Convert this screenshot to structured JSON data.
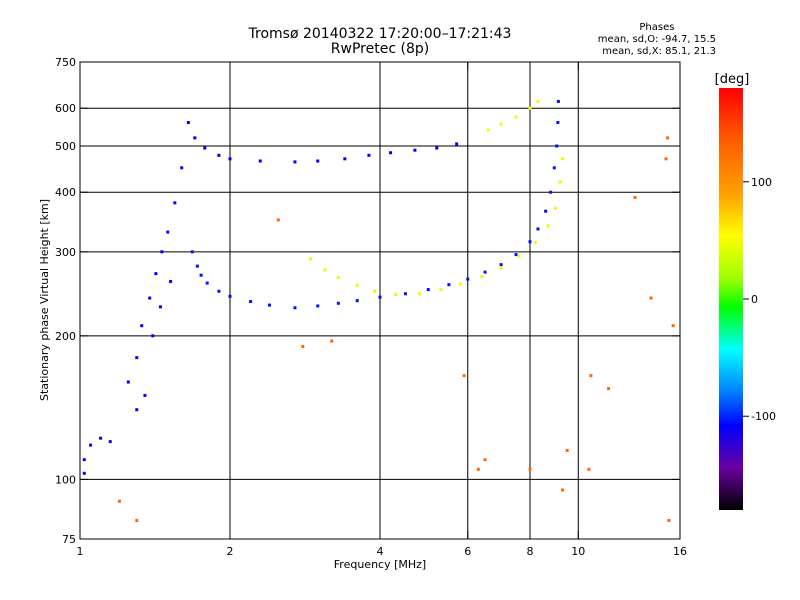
{
  "header": {
    "title_line1": "Tromsø 20140322 17:20:00–17:21:43",
    "title_line2": "RwPretec (8p)"
  },
  "phases": {
    "title": "Phases",
    "line_o": "mean, sd,O: -94.7, 15.5",
    "line_x": "mean, sd,X:  85.1, 21.3"
  },
  "chart_data": {
    "type": "scatter",
    "xlabel": "Frequency [MHz]",
    "ylabel": "Stationary phase Virtual Height [km]",
    "x_scale": "log",
    "y_scale": "log",
    "xlim": [
      1,
      16
    ],
    "ylim": [
      75,
      750
    ],
    "xticks": [
      1,
      2,
      4,
      6,
      8,
      10,
      16
    ],
    "yticks": [
      75,
      100,
      200,
      300,
      400,
      500,
      600,
      750
    ],
    "grid_x": [
      2,
      4,
      6,
      8,
      10
    ],
    "grid_y": [
      100,
      200,
      300,
      400,
      500,
      600
    ],
    "colorbar": {
      "label": "[deg]",
      "range": [
        -180,
        180
      ],
      "ticks": [
        100,
        0,
        -100
      ]
    },
    "series": [
      {
        "description": "O-mode F-layer trace",
        "phase_deg": -95,
        "points": [
          [
            1.68,
            300
          ],
          [
            1.72,
            280
          ],
          [
            1.75,
            268
          ],
          [
            1.8,
            258
          ],
          [
            1.9,
            248
          ],
          [
            2.0,
            242
          ],
          [
            2.2,
            236
          ],
          [
            2.4,
            232
          ],
          [
            2.7,
            229
          ],
          [
            3.0,
            231
          ],
          [
            3.3,
            234
          ],
          [
            3.6,
            237
          ],
          [
            4.0,
            241
          ],
          [
            4.5,
            245
          ],
          [
            5.0,
            250
          ],
          [
            5.5,
            256
          ],
          [
            6.0,
            263
          ],
          [
            6.5,
            272
          ],
          [
            7.0,
            282
          ],
          [
            7.5,
            296
          ],
          [
            8.0,
            315
          ],
          [
            8.3,
            335
          ],
          [
            8.6,
            365
          ],
          [
            8.8,
            400
          ],
          [
            8.95,
            450
          ],
          [
            9.05,
            500
          ],
          [
            9.1,
            560
          ],
          [
            9.12,
            620
          ]
        ]
      },
      {
        "description": "Upper trace",
        "phase_deg": -100,
        "points": [
          [
            1.65,
            560
          ],
          [
            1.7,
            520
          ],
          [
            1.78,
            495
          ],
          [
            1.9,
            478
          ],
          [
            2.0,
            470
          ],
          [
            2.3,
            465
          ],
          [
            2.7,
            463
          ],
          [
            3.0,
            465
          ],
          [
            3.4,
            470
          ],
          [
            3.8,
            478
          ],
          [
            4.2,
            484
          ],
          [
            4.7,
            490
          ],
          [
            5.2,
            495
          ],
          [
            5.7,
            505
          ]
        ]
      },
      {
        "description": "X-mode F-layer trace",
        "phase_deg": 85,
        "points": [
          [
            2.9,
            290
          ],
          [
            3.1,
            275
          ],
          [
            3.3,
            265
          ],
          [
            3.6,
            255
          ],
          [
            3.9,
            248
          ],
          [
            4.3,
            244
          ],
          [
            4.8,
            245
          ],
          [
            5.3,
            250
          ],
          [
            5.8,
            257
          ],
          [
            6.4,
            266
          ],
          [
            7.0,
            278
          ],
          [
            7.6,
            294
          ],
          [
            8.2,
            314
          ],
          [
            8.7,
            340
          ],
          [
            9.0,
            370
          ],
          [
            9.2,
            420
          ],
          [
            9.3,
            470
          ]
        ]
      },
      {
        "description": "Upper X-mode trace",
        "phase_deg": 90,
        "points": [
          [
            6.6,
            540
          ],
          [
            7.0,
            555
          ],
          [
            7.5,
            575
          ],
          [
            8.0,
            600
          ],
          [
            8.3,
            620
          ]
        ]
      },
      {
        "description": "Spread-F cluster",
        "phase_deg": -100,
        "points": [
          [
            1.25,
            160
          ],
          [
            1.3,
            180
          ],
          [
            1.33,
            210
          ],
          [
            1.38,
            240
          ],
          [
            1.42,
            270
          ],
          [
            1.46,
            300
          ],
          [
            1.5,
            330
          ],
          [
            1.55,
            380
          ],
          [
            1.6,
            450
          ],
          [
            1.3,
            140
          ],
          [
            1.35,
            150
          ],
          [
            1.4,
            200
          ],
          [
            1.45,
            230
          ],
          [
            1.52,
            260
          ]
        ]
      },
      {
        "description": "Low-frequency echoes",
        "phase_deg": -105,
        "points": [
          [
            1.02,
            110
          ],
          [
            1.05,
            118
          ],
          [
            1.1,
            122
          ],
          [
            1.15,
            120
          ],
          [
            1.02,
            103
          ]
        ]
      },
      {
        "description": "Scattered points",
        "phase_deg": 140,
        "points": [
          [
            1.2,
            90
          ],
          [
            1.3,
            82
          ],
          [
            2.5,
            350
          ],
          [
            2.8,
            190
          ],
          [
            3.2,
            195
          ],
          [
            5.9,
            165
          ],
          [
            6.3,
            105
          ],
          [
            6.5,
            110
          ],
          [
            8.0,
            105
          ],
          [
            9.3,
            95
          ],
          [
            9.5,
            115
          ],
          [
            10.5,
            105
          ],
          [
            10.6,
            165
          ],
          [
            11.5,
            155
          ],
          [
            13.0,
            390
          ],
          [
            14.0,
            240
          ],
          [
            15.0,
            470
          ],
          [
            15.1,
            520
          ],
          [
            15.2,
            82
          ],
          [
            15.5,
            210
          ]
        ]
      }
    ]
  }
}
